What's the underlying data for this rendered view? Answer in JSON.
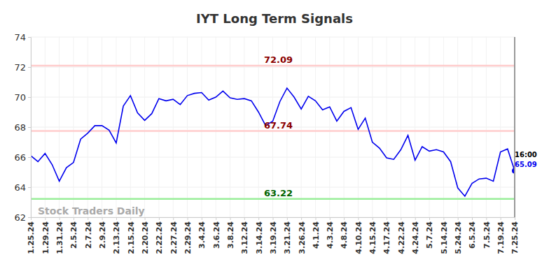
{
  "chart_data": {
    "type": "line",
    "title": "IYT Long Term Signals",
    "categories": [
      "1.25.24",
      null,
      "1.29.24",
      null,
      "1.31.24",
      null,
      "2.5.24",
      null,
      "2.7.24",
      null,
      "2.9.24",
      null,
      "2.13.24",
      null,
      "2.15.24",
      null,
      "2.20.24",
      null,
      "2.22.24",
      null,
      "2.27.24",
      null,
      "2.29.24",
      null,
      "3.4.24",
      null,
      "3.6.24",
      null,
      "3.8.24",
      null,
      "3.12.24",
      null,
      "3.14.24",
      null,
      "3.19.24",
      null,
      "3.21.24",
      null,
      "3.26.24",
      null,
      "4.1.24",
      null,
      "4.3.24",
      null,
      "4.8.24",
      null,
      "4.10.24",
      null,
      "4.15.24",
      null,
      "4.17.24",
      null,
      "4.22.24",
      null,
      "4.24.24",
      null,
      "5.7.24",
      null,
      "5.14.24",
      null,
      "5.24.24",
      null,
      "6.5.24",
      null,
      "7.5.24",
      null,
      "7.19.24",
      null,
      "7.25.24"
    ],
    "values": [
      66.1,
      65.7,
      66.25,
      65.5,
      64.4,
      65.3,
      65.65,
      67.2,
      67.6,
      68.1,
      68.1,
      67.8,
      66.95,
      69.4,
      70.1,
      68.95,
      68.45,
      68.9,
      69.9,
      69.75,
      69.85,
      69.5,
      70.1,
      70.25,
      70.3,
      69.8,
      70.0,
      70.4,
      69.95,
      69.85,
      69.9,
      69.75,
      69.0,
      68.1,
      68.4,
      69.7,
      70.6,
      70.0,
      69.2,
      70.05,
      69.75,
      69.15,
      69.35,
      68.4,
      69.05,
      69.3,
      67.85,
      68.6,
      67.0,
      66.6,
      65.95,
      65.85,
      66.5,
      67.45,
      65.8,
      66.7,
      66.4,
      66.5,
      66.35,
      65.7,
      63.95,
      63.4,
      64.25,
      64.55,
      64.6,
      64.4,
      66.35,
      66.55,
      65.09
    ],
    "color": "#0000ee",
    "ylim": [
      62,
      74
    ],
    "yticks": [
      62,
      64,
      66,
      68,
      70,
      72,
      74
    ],
    "grid": true,
    "signal_lines": [
      {
        "value": 72.09,
        "color": "#ffcccc",
        "label_color": "#8b0000"
      },
      {
        "value": 67.74,
        "color": "#ffcccc",
        "label_color": "#8b0000"
      },
      {
        "value": 63.22,
        "color": "#99ee99",
        "label_color": "#006400"
      }
    ],
    "last_time": "16:00",
    "watermark": "Stock Traders Daily"
  }
}
